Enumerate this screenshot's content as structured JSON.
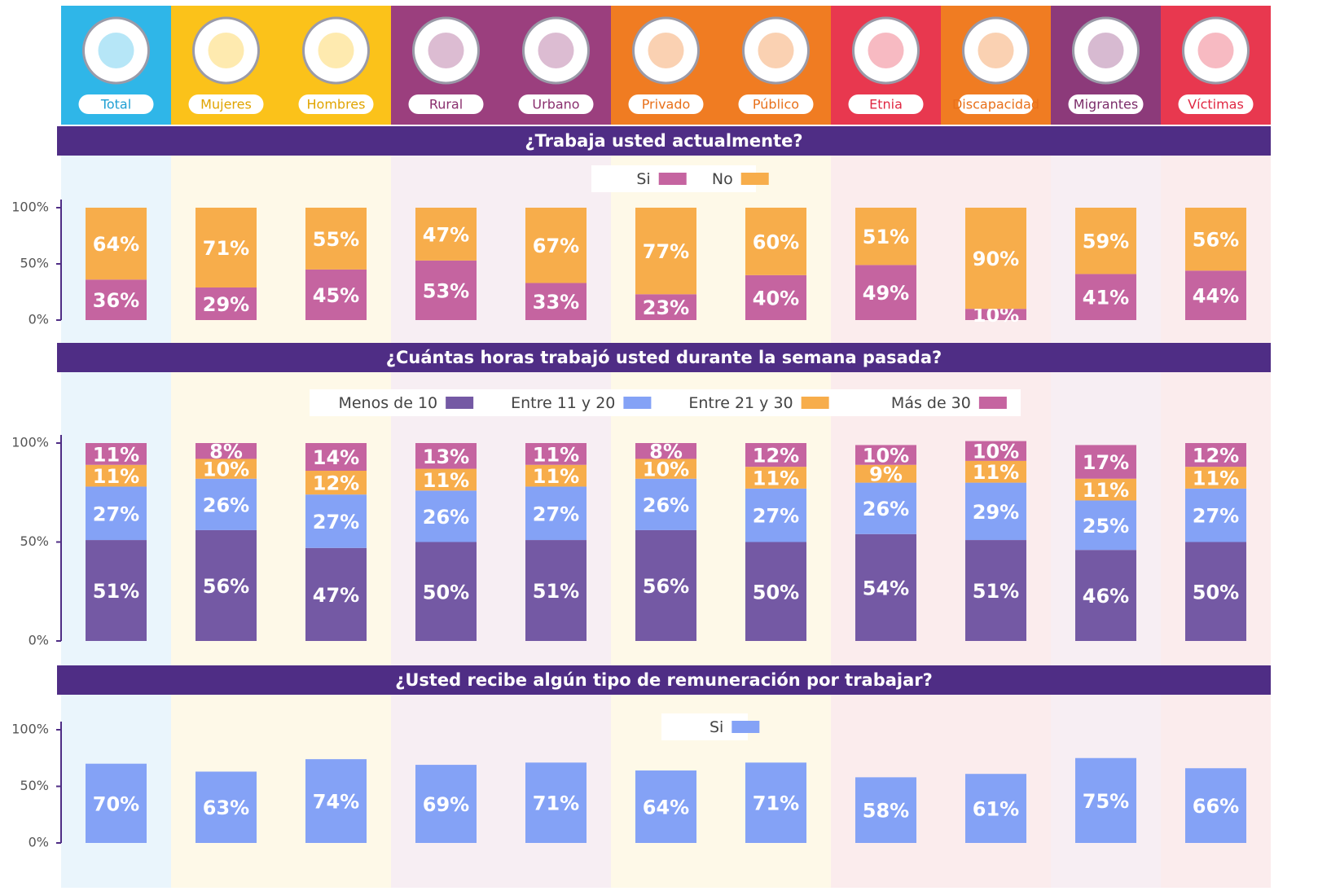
{
  "groups": [
    "Total",
    "Mujeres",
    "Hombres",
    "Rural",
    "Urbano",
    "Privado",
    "Público",
    "Etnia",
    "Discapacidad",
    "Migrantes",
    "Víctimas"
  ],
  "chart_data": [
    {
      "type": "stacked_bar",
      "title": "¿Trabaja usted actualmente?",
      "ylim": [
        0,
        100
      ],
      "yticks": [
        {
          "value": 0,
          "label": "0%"
        },
        {
          "value": 50,
          "label": "50%"
        },
        {
          "value": 100,
          "label": "100%"
        }
      ],
      "series": [
        {
          "name": "Si",
          "color": "#c564a0",
          "values": [
            36,
            29,
            45,
            53,
            33,
            23,
            40,
            49,
            10,
            41,
            44
          ],
          "value_labels": [
            "36%",
            "29%",
            "45%",
            "53%",
            "33%",
            "23%",
            "40%",
            "49%",
            "10%",
            "41%",
            "44%"
          ]
        },
        {
          "name": "No",
          "color": "#f7ad4b",
          "values": [
            64,
            71,
            55,
            47,
            67,
            77,
            60,
            51,
            90,
            59,
            56
          ],
          "value_labels": [
            "64%",
            "71%",
            "55%",
            "47%",
            "67%",
            "77%",
            "60%",
            "51%",
            "90%",
            "59%",
            "56%"
          ]
        }
      ]
    },
    {
      "type": "stacked_bar",
      "title": "¿Cuántas horas trabajó usted durante la semana pasada?",
      "ylim": [
        0,
        100
      ],
      "yticks": [
        {
          "value": 0,
          "label": "0%"
        },
        {
          "value": 50,
          "label": "50%"
        },
        {
          "value": 100,
          "label": "100%"
        }
      ],
      "series": [
        {
          "name": "Menos de 10",
          "color": "#7459a4",
          "values": [
            51,
            56,
            47,
            50,
            51,
            56,
            50,
            54,
            51,
            46,
            50
          ],
          "value_labels": [
            "51%",
            "56%",
            "47%",
            "50%",
            "51%",
            "56%",
            "50%",
            "54%",
            "51%",
            "46%",
            "50%"
          ]
        },
        {
          "name": "Entre 11 y 20",
          "color": "#84a2f6",
          "values": [
            27,
            26,
            27,
            26,
            27,
            26,
            27,
            26,
            29,
            25,
            27
          ],
          "value_labels": [
            "27%",
            "26%",
            "27%",
            "26%",
            "27%",
            "26%",
            "27%",
            "26%",
            "29%",
            "25%",
            "27%"
          ]
        },
        {
          "name": "Entre 21 y 30",
          "color": "#f7ad4b",
          "values": [
            11,
            10,
            12,
            11,
            11,
            10,
            11,
            9,
            11,
            11,
            11
          ],
          "value_labels": [
            "11%",
            "10%",
            "12%",
            "11%",
            "11%",
            "10%",
            "11%",
            "9%",
            "11%",
            "11%",
            "11%"
          ]
        },
        {
          "name": "Más de 30",
          "color": "#c564a0",
          "values": [
            11,
            8,
            14,
            13,
            11,
            8,
            12,
            10,
            10,
            17,
            12
          ],
          "value_labels": [
            "11%",
            "8%",
            "14%",
            "13%",
            "11%",
            "8%",
            "12%",
            "10%",
            "10%",
            "17%",
            "12%"
          ]
        }
      ]
    },
    {
      "type": "bar",
      "title": "¿Usted recibe algún tipo de remuneración por trabajar?",
      "ylim": [
        0,
        100
      ],
      "yticks": [
        {
          "value": 0,
          "label": "0%"
        },
        {
          "value": 50,
          "label": "50%"
        },
        {
          "value": 100,
          "label": "100%"
        }
      ],
      "series": [
        {
          "name": "Si",
          "color": "#84a2f6",
          "values": [
            70,
            63,
            74,
            69,
            71,
            64,
            71,
            58,
            61,
            75,
            66
          ],
          "value_labels": [
            "70%",
            "63%",
            "74%",
            "69%",
            "71%",
            "64%",
            "71%",
            "58%",
            "61%",
            "75%",
            "66%"
          ]
        }
      ]
    }
  ]
}
